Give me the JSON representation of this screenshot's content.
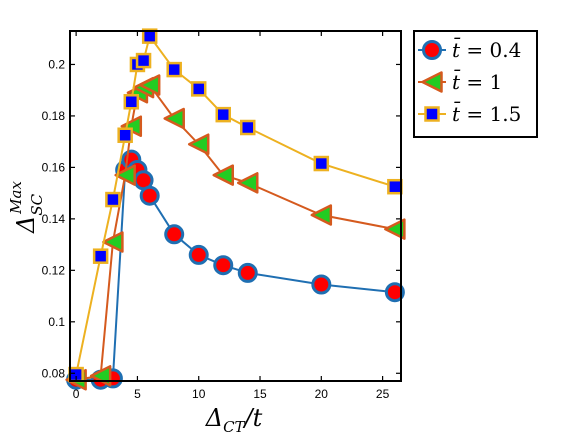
{
  "chart_data": {
    "type": "line",
    "xlabel": "Δ_CT/t",
    "ylabel": "Δ_SC^Max",
    "xlim": [
      -0.5,
      26.5
    ],
    "ylim": [
      0.077,
      0.213
    ],
    "xticks": [
      0,
      5,
      10,
      15,
      20,
      25
    ],
    "xtick_labels": [
      "0",
      "5",
      "10",
      "15",
      "20",
      "25"
    ],
    "yticks": [
      0.08,
      0.1,
      0.12,
      0.14,
      0.16,
      0.18,
      0.2
    ],
    "ytick_labels": [
      "0.08",
      "0.1",
      "0.12",
      "0.14",
      "0.16",
      "0.18",
      "0.2"
    ],
    "grid": false,
    "legend_position": "outside-top-right",
    "series": [
      {
        "name": "t̄ = 0.4",
        "legend_prefix": "t̄",
        "legend_value": "= 0.4",
        "line_color": "#1f6fb2",
        "marker": "circle",
        "marker_fill": "#ff0000",
        "marker_edge": "#1f6fb2",
        "x": [
          0,
          2,
          3,
          4,
          4.5,
          5,
          5.5,
          6,
          8,
          10,
          12,
          14,
          20,
          26
        ],
        "y": [
          0.0775,
          0.0775,
          0.078,
          0.159,
          0.163,
          0.159,
          0.155,
          0.149,
          0.134,
          0.126,
          0.122,
          0.119,
          0.1145,
          0.1115
        ]
      },
      {
        "name": "t̄ = 1",
        "legend_prefix": "t̄",
        "legend_value": "= 1",
        "line_color": "#d55a1e",
        "marker": "triangle-left",
        "marker_fill": "#22cc22",
        "marker_edge": "#d55a1e",
        "x": [
          0,
          2,
          3,
          4,
          4.5,
          5,
          5.5,
          6,
          8,
          10,
          12,
          14,
          20,
          26
        ],
        "y": [
          0.0775,
          0.079,
          0.131,
          0.157,
          0.176,
          0.189,
          0.191,
          0.192,
          0.179,
          0.169,
          0.157,
          0.154,
          0.1415,
          0.136
        ]
      },
      {
        "name": "t̄ = 1.5",
        "legend_prefix": "t̄",
        "legend_value": "= 1.5",
        "line_color": "#edb120",
        "marker": "square",
        "marker_fill": "#0000ff",
        "marker_edge": "#edb120",
        "x": [
          0,
          2,
          3,
          4,
          4.5,
          5,
          5.5,
          6,
          8,
          10,
          12,
          14,
          20,
          26
        ],
        "y": [
          0.0795,
          0.1255,
          0.1475,
          0.1725,
          0.1855,
          0.2,
          0.2015,
          0.211,
          0.198,
          0.1905,
          0.1805,
          0.1755,
          0.1615,
          0.1525
        ]
      }
    ]
  }
}
